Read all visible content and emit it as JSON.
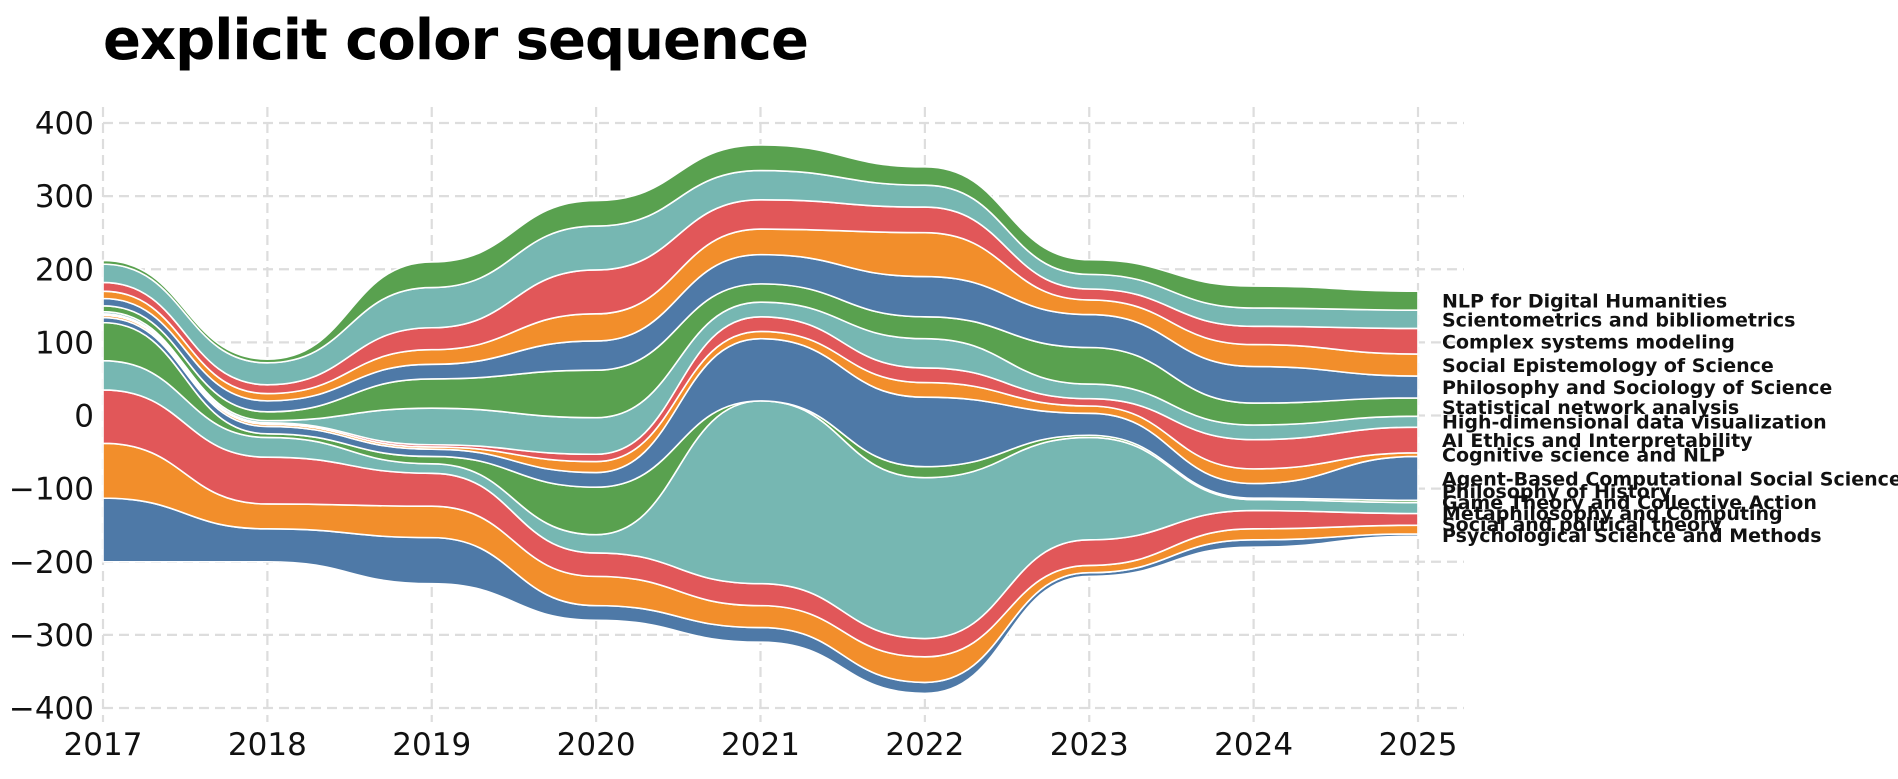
{
  "title": "explicit color sequence",
  "chart_data": {
    "type": "area",
    "subtype": "streamgraph",
    "title": "explicit color sequence",
    "xlabel": "",
    "ylabel": "",
    "x": [
      2017,
      2018,
      2019,
      2020,
      2021,
      2022,
      2023,
      2024,
      2025
    ],
    "xlim": [
      2017,
      2025
    ],
    "ylim": [
      -400,
      400
    ],
    "yticks": [
      -400,
      -300,
      -200,
      -100,
      0,
      100,
      200,
      300,
      400
    ],
    "grid": true,
    "grid_style": "dashed",
    "legend": "inline labels at right end",
    "baseline": [
      -200,
      -200,
      -230,
      -280,
      -310,
      -380,
      -220,
      -180,
      -165
    ],
    "series": [
      {
        "name": "Psychological Science and Methods",
        "color": "#4e79a7",
        "values": [
          87,
          45,
          63,
          20,
          20,
          15,
          5,
          10,
          3
        ]
      },
      {
        "name": "Social and political theory",
        "color": "#f28e2b",
        "values": [
          75,
          34,
          43,
          40,
          30,
          35,
          10,
          15,
          12
        ]
      },
      {
        "name": "Metaphilosophy and Computing",
        "color": "#e15759",
        "values": [
          73,
          64,
          45,
          32,
          30,
          25,
          35,
          25,
          16
        ]
      },
      {
        "name": "Game Theory and Collective Action",
        "color": "#76b7b2",
        "values": [
          40,
          27,
          13,
          25,
          250,
          220,
          140,
          15,
          15
        ]
      },
      {
        "name": "Philosophy of History",
        "color": "#59a14f",
        "values": [
          52,
          5,
          10,
          65,
          0,
          15,
          3,
          2,
          3
        ]
      },
      {
        "name": "Agent-Based Computational Social Science",
        "color": "#4e79a7",
        "values": [
          7,
          10,
          10,
          20,
          85,
          95,
          30,
          20,
          60
        ]
      },
      {
        "name": "Cognitive science and NLP",
        "color": "#f28e2b",
        "values": [
          3,
          3,
          3,
          15,
          10,
          20,
          10,
          20,
          5
        ]
      },
      {
        "name": "AI Ethics and Interpretability",
        "color": "#e15759",
        "values": [
          2,
          2,
          3,
          10,
          20,
          20,
          10,
          40,
          35
        ]
      },
      {
        "name": "High-dimensional data visualization",
        "color": "#76b7b2",
        "values": [
          3,
          3,
          50,
          50,
          20,
          40,
          20,
          20,
          15
        ]
      },
      {
        "name": "Statistical network analysis",
        "color": "#59a14f",
        "values": [
          8,
          12,
          40,
          65,
          25,
          30,
          50,
          30,
          25
        ]
      },
      {
        "name": "Philosophy and Sociology of Science",
        "color": "#4e79a7",
        "values": [
          10,
          15,
          20,
          40,
          40,
          55,
          45,
          50,
          30
        ]
      },
      {
        "name": "Social Epistemology of Science",
        "color": "#f28e2b",
        "values": [
          10,
          10,
          20,
          37,
          35,
          60,
          20,
          30,
          30
        ]
      },
      {
        "name": "Complex systems modeling",
        "color": "#e15759",
        "values": [
          12,
          12,
          30,
          60,
          40,
          35,
          15,
          25,
          35
        ]
      },
      {
        "name": "Scientometrics and bibliometrics",
        "color": "#76b7b2",
        "values": [
          25,
          30,
          55,
          60,
          40,
          30,
          20,
          25,
          25
        ]
      },
      {
        "name": "NLP for Digital Humanities",
        "color": "#59a14f",
        "values": [
          5,
          5,
          35,
          35,
          35,
          25,
          20,
          30,
          26
        ]
      }
    ]
  }
}
